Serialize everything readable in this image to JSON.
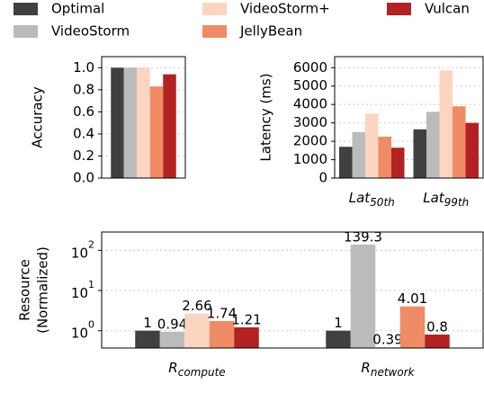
{
  "legend": [
    {
      "name": "Optimal",
      "color": "#404040"
    },
    {
      "name": "VideoStorm",
      "color": "#bbbbbb"
    },
    {
      "name": "VideoStorm+",
      "color": "#fcd5c0"
    },
    {
      "name": "JellyBean",
      "color": "#ef8c65"
    },
    {
      "name": "Vulcan",
      "color": "#b22222"
    }
  ],
  "chart_data": [
    {
      "type": "bar",
      "ylabel": [
        "Accuracy"
      ],
      "categories": [
        null
      ],
      "series": [
        {
          "values": [
            1.0
          ]
        },
        {
          "values": [
            1.0
          ]
        },
        {
          "values": [
            1.0
          ]
        },
        {
          "values": [
            0.83
          ]
        },
        {
          "values": [
            0.94
          ]
        }
      ],
      "ylim": [
        0,
        1.1
      ],
      "yticks": [
        {
          "value": 0,
          "label": "0.0"
        },
        {
          "value": 0.2,
          "label": "0.2"
        },
        {
          "value": 0.4,
          "label": "0.4"
        },
        {
          "value": 0.6,
          "label": "0.6"
        },
        {
          "value": 0.8,
          "label": "0.8"
        },
        {
          "value": 1.0,
          "label": "1.0"
        }
      ],
      "grid": true
    },
    {
      "type": "bar",
      "ylabel": [
        "Latency (ms)"
      ],
      "categories": [
        {
          "text": "Lat",
          "sub": "50th"
        },
        {
          "text": "Lat",
          "sub": "99th"
        }
      ],
      "series": [
        {
          "values": [
            1700,
            2650
          ]
        },
        {
          "values": [
            2500,
            3600
          ]
        },
        {
          "values": [
            3500,
            5850
          ]
        },
        {
          "values": [
            2250,
            3900
          ]
        },
        {
          "values": [
            1650,
            3000
          ]
        }
      ],
      "ylim": [
        0,
        6600
      ],
      "yticks": [
        0,
        1000,
        2000,
        3000,
        4000,
        5000,
        6000
      ],
      "grid": true
    },
    {
      "type": "bar",
      "ylabel": [
        "Resource",
        "(Normalized)"
      ],
      "log_scale": true,
      "categories": [
        {
          "text": "R",
          "sub": "compute"
        },
        {
          "text": "R",
          "sub": "network"
        }
      ],
      "series": [
        {
          "values": [
            1,
            1
          ]
        },
        {
          "values": [
            0.94,
            139.3
          ]
        },
        {
          "values": [
            2.66,
            0.39
          ]
        },
        {
          "values": [
            1.74,
            4.01
          ]
        },
        {
          "values": [
            1.21,
            0.8
          ]
        }
      ],
      "ylim": [
        0.37,
        285
      ],
      "yticks": [
        {
          "value": 1,
          "label": {
            "base": "10",
            "exp": "0"
          }
        },
        {
          "value": 10,
          "label": {
            "base": "10",
            "exp": "1"
          }
        },
        {
          "value": 100,
          "label": {
            "base": "10",
            "exp": "2"
          }
        }
      ],
      "grid": true,
      "data_labels": true
    }
  ]
}
